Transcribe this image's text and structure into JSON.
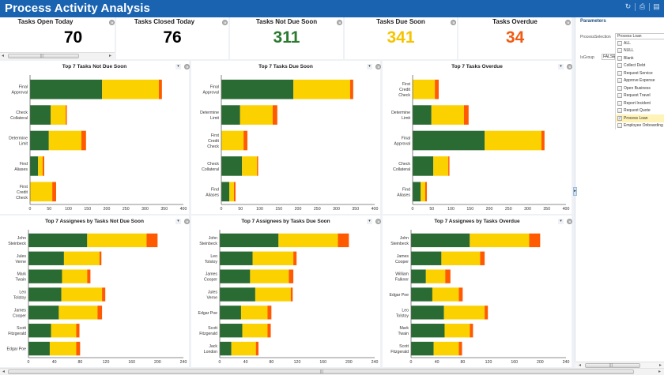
{
  "header": {
    "title": "Process Activity Analysis",
    "tools": [
      {
        "name": "refresh-icon",
        "glyph": "↻"
      },
      {
        "name": "print-icon",
        "glyph": "⎙"
      },
      {
        "name": "export-icon",
        "glyph": "▤"
      }
    ]
  },
  "kpis": [
    {
      "label": "Tasks Open Today",
      "value": "70",
      "color": "#000000"
    },
    {
      "label": "Tasks Closed Today",
      "value": "76",
      "color": "#000000"
    },
    {
      "label": "Tasks Not Due Soon",
      "value": "311",
      "color": "#2a7a2f"
    },
    {
      "label": "Tasks Due Soon",
      "value": "341",
      "color": "#f5c400"
    },
    {
      "label": "Tasks Overdue",
      "value": "34",
      "color": "#f05a12"
    }
  ],
  "colors": {
    "not_due_soon": "#2a6b33",
    "due_soon": "#fbd100",
    "overdue": "#ff5a00",
    "header_bg": "#1a63b0"
  },
  "parameters": {
    "title": "Parameters",
    "process_selection_label": "ProcessSelection",
    "process_selection_value": "Process Loan",
    "is_group_label": "IsGroup",
    "is_group_value": "FALSE",
    "options": [
      {
        "label": "ALL",
        "checked": false
      },
      {
        "label": "NULL",
        "checked": false
      },
      {
        "label": "Blank",
        "checked": false
      },
      {
        "label": "Collect Debt",
        "checked": false
      },
      {
        "label": "Request Service",
        "checked": false
      },
      {
        "label": "Approve Expense",
        "checked": false
      },
      {
        "label": "Open Business",
        "checked": false
      },
      {
        "label": "Request Travel",
        "checked": false
      },
      {
        "label": "Report Incident",
        "checked": false
      },
      {
        "label": "Request Quote",
        "checked": false
      },
      {
        "label": "Process Loan",
        "checked": true
      },
      {
        "label": "Employee Onboarding",
        "checked": false
      }
    ]
  },
  "chart_data": [
    {
      "type": "bar",
      "orientation": "horizontal",
      "stacked": true,
      "title": "Top 7 Tasks Not Due Soon",
      "categories": [
        "Final\nApproval",
        "Check\nCollateral",
        "Determine\nLimit",
        "Find\nAliases",
        "First\nCredit\nCheck"
      ],
      "series": [
        {
          "name": "Not Due Soon",
          "values": [
            188,
            54,
            49,
            21,
            0
          ]
        },
        {
          "name": "Due Soon",
          "values": [
            148,
            39,
            85,
            12,
            58
          ]
        },
        {
          "name": "Overdue",
          "values": [
            8,
            3,
            12,
            4,
            10
          ]
        }
      ],
      "xlim": [
        0,
        400
      ],
      "xticks": [
        "0",
        "50",
        "100",
        "150",
        "200",
        "250",
        "300",
        "350",
        "400"
      ]
    },
    {
      "type": "bar",
      "orientation": "horizontal",
      "stacked": true,
      "title": "Top 7 Tasks Due Soon",
      "categories": [
        "Final\nApproval",
        "Determine\nLimit",
        "First\nCredit\nCheck",
        "Check\nCollateral",
        "Find\nAliases"
      ],
      "series": [
        {
          "name": "Not Due Soon",
          "values": [
            188,
            49,
            0,
            54,
            21
          ]
        },
        {
          "name": "Due Soon",
          "values": [
            148,
            85,
            58,
            39,
            12
          ]
        },
        {
          "name": "Overdue",
          "values": [
            8,
            12,
            10,
            3,
            4
          ]
        }
      ],
      "xlim": [
        0,
        400
      ],
      "xticks": [
        "0",
        "50",
        "100",
        "150",
        "200",
        "250",
        "300",
        "350",
        "400"
      ]
    },
    {
      "type": "bar",
      "orientation": "horizontal",
      "stacked": true,
      "title": "Top 7 Tasks Overdue",
      "categories": [
        "First\nCredit\nCheck",
        "Determine\nLimit",
        "Final\nApproval",
        "Check\nCollateral",
        "Find\nAliases"
      ],
      "series": [
        {
          "name": "Not Due Soon",
          "values": [
            0,
            49,
            188,
            54,
            21
          ]
        },
        {
          "name": "Due Soon",
          "values": [
            58,
            85,
            148,
            39,
            12
          ]
        },
        {
          "name": "Overdue",
          "values": [
            10,
            12,
            8,
            3,
            4
          ]
        }
      ],
      "xlim": [
        0,
        400
      ],
      "xticks": [
        "0",
        "50",
        "100",
        "150",
        "200",
        "250",
        "300",
        "350",
        "400"
      ]
    },
    {
      "type": "bar",
      "orientation": "horizontal",
      "stacked": true,
      "title": "Top 7 Assignees by Tasks Not Due Soon",
      "categories": [
        "John\nSteinbeck",
        "Jules\nVerne",
        "Mark\nTwain",
        "Leo\nTolstoy",
        "James\nCooper",
        "Scott\nFitzgerald",
        "Edgar Poe"
      ],
      "series": [
        {
          "name": "Not Due Soon",
          "values": [
            91,
            55,
            52,
            51,
            47,
            35,
            33
          ]
        },
        {
          "name": "Due Soon",
          "values": [
            92,
            55,
            39,
            63,
            60,
            39,
            41
          ]
        },
        {
          "name": "Overdue",
          "values": [
            17,
            3,
            5,
            5,
            7,
            5,
            6
          ]
        }
      ],
      "xlim": [
        0,
        240
      ],
      "xticks": [
        "0",
        "40",
        "80",
        "120",
        "160",
        "200",
        "240"
      ]
    },
    {
      "type": "bar",
      "orientation": "horizontal",
      "stacked": true,
      "title": "Top 7 Assignees by Tasks Due Soon",
      "categories": [
        "John\nSteinbeck",
        "Leo\nTolstoy",
        "James\nCooper",
        "Jules\nVerne",
        "Edgar Poe",
        "Scott\nFitzgerald",
        "Jack\nLondon"
      ],
      "series": [
        {
          "name": "Not Due Soon",
          "values": [
            91,
            51,
            47,
            55,
            33,
            35,
            18
          ]
        },
        {
          "name": "Due Soon",
          "values": [
            92,
            63,
            60,
            55,
            41,
            39,
            38
          ]
        },
        {
          "name": "Overdue",
          "values": [
            17,
            5,
            7,
            3,
            6,
            5,
            4
          ]
        }
      ],
      "xlim": [
        0,
        240
      ],
      "xticks": [
        "0",
        "40",
        "80",
        "120",
        "160",
        "200",
        "240"
      ]
    },
    {
      "type": "bar",
      "orientation": "horizontal",
      "stacked": true,
      "title": "Top 7 Assignees by Tasks Overdue",
      "categories": [
        "John\nSteinbeck",
        "James\nCooper",
        "William\nFalkner",
        "Edgar Poe",
        "Leo\nTolstoy",
        "Mark\nTwain",
        "Scott\nFitzgerald"
      ],
      "series": [
        {
          "name": "Not Due Soon",
          "values": [
            91,
            47,
            23,
            33,
            51,
            52,
            35
          ]
        },
        {
          "name": "Due Soon",
          "values": [
            92,
            60,
            30,
            41,
            63,
            39,
            39
          ]
        },
        {
          "name": "Overdue",
          "values": [
            17,
            7,
            8,
            6,
            5,
            5,
            5
          ]
        }
      ],
      "xlim": [
        0,
        240
      ],
      "xticks": [
        "0",
        "40",
        "80",
        "120",
        "160",
        "200",
        "240"
      ]
    }
  ]
}
